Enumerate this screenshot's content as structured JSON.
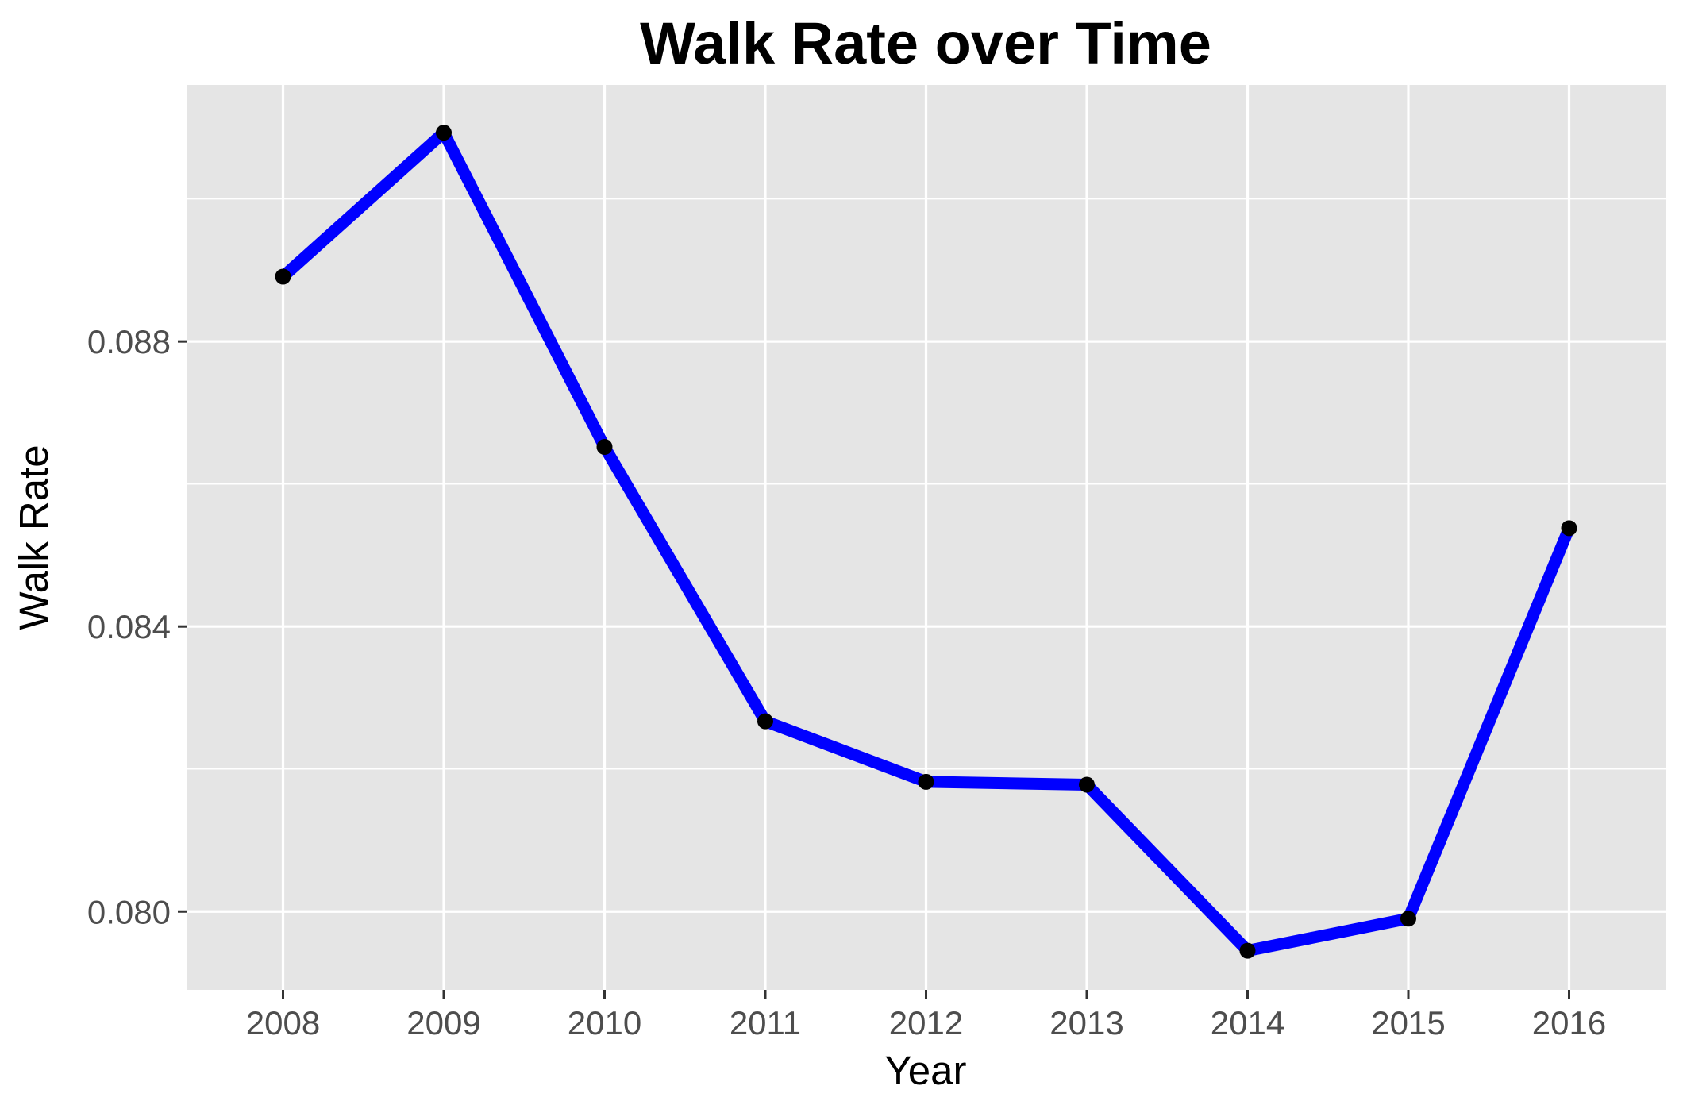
{
  "chart_data": {
    "type": "line",
    "title": "Walk Rate over Time",
    "xlabel": "Year",
    "ylabel": "Walk Rate",
    "x": [
      2008,
      2009,
      2010,
      2011,
      2012,
      2013,
      2014,
      2015,
      2016
    ],
    "x_tick_labels": [
      "2008",
      "2009",
      "2010",
      "2011",
      "2012",
      "2013",
      "2014",
      "2015",
      "2016"
    ],
    "series": [
      {
        "values": [
          0.08891,
          0.09093,
          0.08652,
          0.08267,
          0.08182,
          0.08178,
          0.07945,
          0.0799,
          0.08538
        ]
      }
    ],
    "y_ticks": [
      0.08,
      0.084,
      0.088
    ],
    "y_tick_labels": [
      "0.080",
      "0.084",
      "0.088"
    ],
    "xlim": [
      2007.4,
      2016.6
    ],
    "ylim": [
      0.0789,
      0.0916
    ],
    "grid": true,
    "colors": {
      "line": "#0000ff",
      "points": "#000000",
      "panel_background": "#e5e5e5",
      "grid": "#ffffff",
      "axis_ticks": "#333333"
    }
  }
}
